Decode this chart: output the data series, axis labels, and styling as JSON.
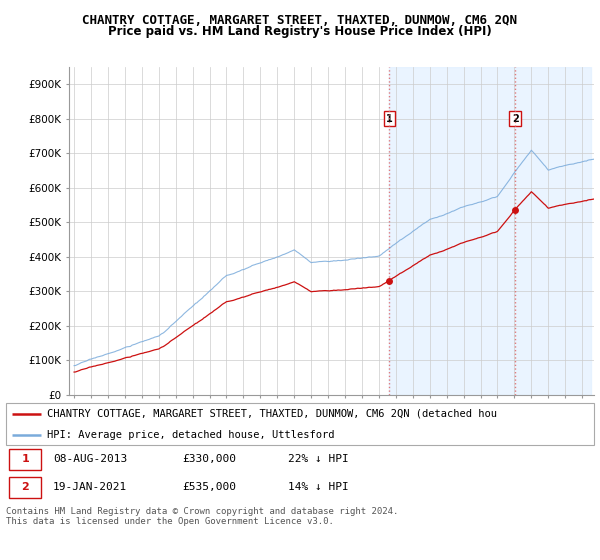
{
  "title": "CHANTRY COTTAGE, MARGARET STREET, THAXTED, DUNMOW, CM6 2QN",
  "subtitle": "Price paid vs. HM Land Registry's House Price Index (HPI)",
  "ylim": [
    0,
    950000
  ],
  "yticks": [
    0,
    100000,
    200000,
    300000,
    400000,
    500000,
    600000,
    700000,
    800000,
    900000
  ],
  "ytick_labels": [
    "£0",
    "£100K",
    "£200K",
    "£300K",
    "£400K",
    "£500K",
    "£600K",
    "£700K",
    "£800K",
    "£900K"
  ],
  "hpi_color": "#7aabdb",
  "price_color": "#cc1111",
  "sale1_year": 2013.615,
  "sale1_price": 330000,
  "sale2_year": 2021.05,
  "sale2_price": 535000,
  "legend_line1": "CHANTRY COTTAGE, MARGARET STREET, THAXTED, DUNMOW, CM6 2QN (detached hou",
  "legend_line2": "HPI: Average price, detached house, Uttlesford",
  "sale1_text": "08-AUG-2013",
  "sale1_price_text": "£330,000",
  "sale1_hpi_text": "22% ↓ HPI",
  "sale2_text": "19-JAN-2021",
  "sale2_price_text": "£535,000",
  "sale2_hpi_text": "14% ↓ HPI",
  "footer": "Contains HM Land Registry data © Crown copyright and database right 2024.\nThis data is licensed under the Open Government Licence v3.0.",
  "bg_shade_color": "#ddeeff",
  "vline_color": "#dd6666",
  "box_color": "#cc1111",
  "grid_color": "#cccccc",
  "title_fontsize": 9,
  "subtitle_fontsize": 8.5,
  "axis_fontsize": 7.5,
  "legend_fontsize": 7.5,
  "table_fontsize": 8,
  "footer_fontsize": 6.5,
  "xstart": 1995,
  "xend": 2025
}
